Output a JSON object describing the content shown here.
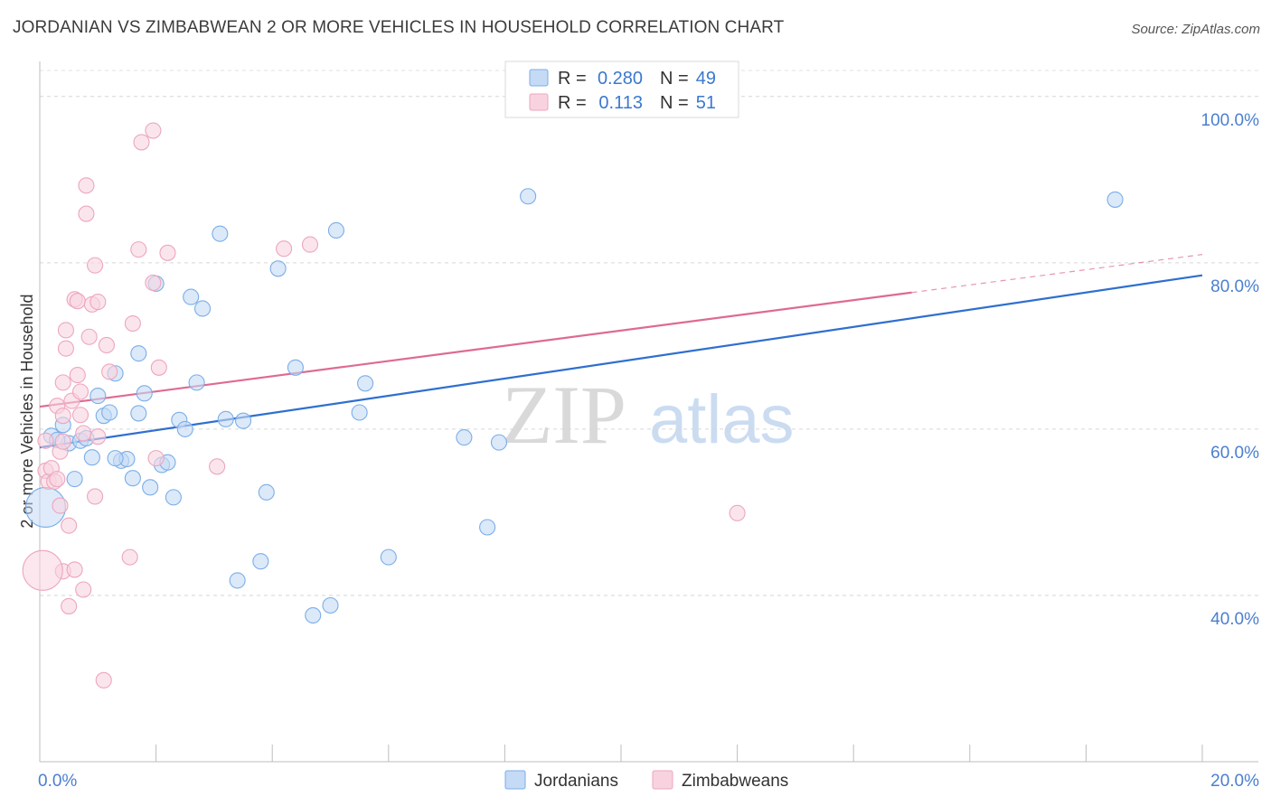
{
  "title": "JORDANIAN VS ZIMBABWEAN 2 OR MORE VEHICLES IN HOUSEHOLD CORRELATION CHART",
  "source": "Source: ZipAtlas.com",
  "watermark": {
    "zip": "ZIP",
    "atlas": "atlas"
  },
  "legend": {
    "r_label": "R =",
    "n_label": "N =",
    "rows": [
      {
        "r": "0.280",
        "n": "49"
      },
      {
        "r": "0.113",
        "n": "51"
      }
    ]
  },
  "chart_data": {
    "type": "scatter",
    "title": "JORDANIAN VS ZIMBABWEAN 2 OR MORE VEHICLES IN HOUSEHOLD CORRELATION CHART",
    "xlabel": "",
    "ylabel": "2 or more Vehicles in Household",
    "xlim": [
      0,
      20
    ],
    "ylim": [
      20,
      104
    ],
    "x_tick_labels": [
      "0.0%",
      "20.0%"
    ],
    "y_ticks": [
      40,
      60,
      80,
      100
    ],
    "y_tick_labels": [
      "40.0%",
      "60.0%",
      "80.0%",
      "100.0%"
    ],
    "grid": true,
    "legend_position": "top-center",
    "series": [
      {
        "name": "Jordanians",
        "color": "#7aaee8",
        "fill": "#c5daf5",
        "line_color": "#2f6fcf",
        "trend": {
          "x0": 0,
          "y0": 57.8,
          "x1": 20,
          "y1": 78.5,
          "solid_until": 20
        },
        "points": [
          {
            "x": 0.2,
            "y": 59.2
          },
          {
            "x": 0.4,
            "y": 60.5
          },
          {
            "x": 0.5,
            "y": 58.3
          },
          {
            "x": 0.6,
            "y": 54.0
          },
          {
            "x": 0.7,
            "y": 58.6
          },
          {
            "x": 0.9,
            "y": 56.6
          },
          {
            "x": 1.0,
            "y": 64.0
          },
          {
            "x": 1.1,
            "y": 61.6
          },
          {
            "x": 1.2,
            "y": 62.0
          },
          {
            "x": 1.3,
            "y": 66.7
          },
          {
            "x": 1.4,
            "y": 56.2
          },
          {
            "x": 1.5,
            "y": 56.4
          },
          {
            "x": 1.6,
            "y": 54.1
          },
          {
            "x": 1.7,
            "y": 69.1
          },
          {
            "x": 1.7,
            "y": 61.9
          },
          {
            "x": 1.8,
            "y": 64.3
          },
          {
            "x": 1.9,
            "y": 53.0
          },
          {
            "x": 2.0,
            "y": 77.5
          },
          {
            "x": 2.1,
            "y": 55.7
          },
          {
            "x": 2.2,
            "y": 56.0
          },
          {
            "x": 2.3,
            "y": 51.8
          },
          {
            "x": 2.4,
            "y": 61.1
          },
          {
            "x": 2.5,
            "y": 60.0
          },
          {
            "x": 2.6,
            "y": 75.9
          },
          {
            "x": 2.7,
            "y": 65.6
          },
          {
            "x": 2.8,
            "y": 74.5
          },
          {
            "x": 3.1,
            "y": 83.5
          },
          {
            "x": 3.2,
            "y": 61.2
          },
          {
            "x": 3.4,
            "y": 41.8
          },
          {
            "x": 3.5,
            "y": 61.0
          },
          {
            "x": 3.8,
            "y": 44.1
          },
          {
            "x": 3.9,
            "y": 52.4
          },
          {
            "x": 4.1,
            "y": 79.3
          },
          {
            "x": 4.4,
            "y": 67.4
          },
          {
            "x": 4.7,
            "y": 37.6
          },
          {
            "x": 5.0,
            "y": 38.8
          },
          {
            "x": 5.1,
            "y": 83.9
          },
          {
            "x": 5.6,
            "y": 65.5
          },
          {
            "x": 5.5,
            "y": 62.0
          },
          {
            "x": 6.0,
            "y": 44.6
          },
          {
            "x": 7.3,
            "y": 59.0
          },
          {
            "x": 7.7,
            "y": 48.2
          },
          {
            "x": 7.9,
            "y": 58.4
          },
          {
            "x": 8.4,
            "y": 88.0
          },
          {
            "x": 18.5,
            "y": 87.6
          },
          {
            "x": 0.1,
            "y": 50.6,
            "big": true
          },
          {
            "x": 0.3,
            "y": 58.7
          },
          {
            "x": 0.8,
            "y": 58.9
          },
          {
            "x": 1.3,
            "y": 56.5
          }
        ]
      },
      {
        "name": "Zimbabweans",
        "color": "#eda6bd",
        "fill": "#f8d3df",
        "line_color": "#de6a93",
        "trend": {
          "x0": 0,
          "y0": 62.7,
          "x1": 20,
          "y1": 81.0,
          "solid_until": 15.0
        },
        "points": [
          {
            "x": 0.1,
            "y": 58.6
          },
          {
            "x": 0.1,
            "y": 55.0
          },
          {
            "x": 0.15,
            "y": 53.7
          },
          {
            "x": 0.2,
            "y": 55.3
          },
          {
            "x": 0.25,
            "y": 53.7
          },
          {
            "x": 0.3,
            "y": 62.8
          },
          {
            "x": 0.35,
            "y": 57.3
          },
          {
            "x": 0.35,
            "y": 50.8
          },
          {
            "x": 0.4,
            "y": 65.6
          },
          {
            "x": 0.4,
            "y": 61.6
          },
          {
            "x": 0.4,
            "y": 42.9
          },
          {
            "x": 0.4,
            "y": 58.5
          },
          {
            "x": 0.45,
            "y": 71.9
          },
          {
            "x": 0.45,
            "y": 69.7
          },
          {
            "x": 0.5,
            "y": 38.7
          },
          {
            "x": 0.5,
            "y": 48.4
          },
          {
            "x": 0.55,
            "y": 63.4
          },
          {
            "x": 0.6,
            "y": 43.1
          },
          {
            "x": 0.6,
            "y": 75.6
          },
          {
            "x": 0.65,
            "y": 75.4
          },
          {
            "x": 0.65,
            "y": 66.5
          },
          {
            "x": 0.7,
            "y": 64.5
          },
          {
            "x": 0.7,
            "y": 61.7
          },
          {
            "x": 0.75,
            "y": 59.5
          },
          {
            "x": 0.75,
            "y": 40.7
          },
          {
            "x": 0.8,
            "y": 89.3
          },
          {
            "x": 0.8,
            "y": 85.9
          },
          {
            "x": 0.85,
            "y": 71.1
          },
          {
            "x": 0.9,
            "y": 75.0
          },
          {
            "x": 0.95,
            "y": 79.7
          },
          {
            "x": 0.95,
            "y": 51.9
          },
          {
            "x": 1.0,
            "y": 75.3
          },
          {
            "x": 1.0,
            "y": 59.1
          },
          {
            "x": 1.1,
            "y": 29.8
          },
          {
            "x": 1.15,
            "y": 70.1
          },
          {
            "x": 1.2,
            "y": 66.9
          },
          {
            "x": 1.55,
            "y": 44.6
          },
          {
            "x": 1.6,
            "y": 72.7
          },
          {
            "x": 1.7,
            "y": 81.6
          },
          {
            "x": 1.75,
            "y": 94.5
          },
          {
            "x": 1.95,
            "y": 95.9
          },
          {
            "x": 1.95,
            "y": 77.6
          },
          {
            "x": 2.0,
            "y": 56.5
          },
          {
            "x": 2.05,
            "y": 67.4
          },
          {
            "x": 2.2,
            "y": 81.2
          },
          {
            "x": 3.05,
            "y": 55.5
          },
          {
            "x": 4.2,
            "y": 81.7
          },
          {
            "x": 4.65,
            "y": 82.2
          },
          {
            "x": 12.0,
            "y": 49.9
          },
          {
            "x": 0.05,
            "y": 43.0,
            "big": true
          },
          {
            "x": 0.3,
            "y": 54.0
          }
        ]
      }
    ]
  }
}
